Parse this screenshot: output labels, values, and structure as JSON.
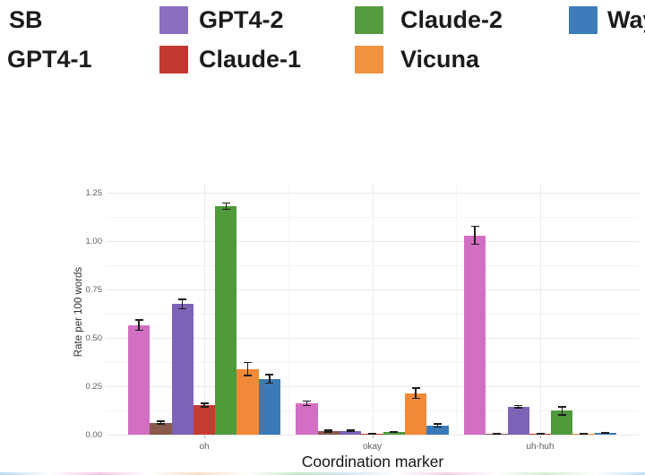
{
  "legend": {
    "items": [
      {
        "id": "sb",
        "label": "SB",
        "color": null,
        "row": 1
      },
      {
        "id": "gpt4-2",
        "label": "GPT4-2",
        "color": "#8a6fc0",
        "row": 1
      },
      {
        "id": "claude-2",
        "label": "Claude-2",
        "color": "#579b40",
        "row": 1
      },
      {
        "id": "wayf",
        "label": "Wayf",
        "color": "#3d7cb8",
        "row": 1,
        "truncated": true
      },
      {
        "id": "gpt4-1",
        "label": "GPT4-1",
        "color": null,
        "row": 2
      },
      {
        "id": "claude-1",
        "label": "Claude-1",
        "color": "#c4392f",
        "row": 2
      },
      {
        "id": "vicuna",
        "label": "Vicuna",
        "color": "#f0923e",
        "row": 2
      }
    ]
  },
  "chart_data": {
    "type": "bar",
    "title": "",
    "xlabel": "Coordination marker",
    "ylabel": "Rate per 100 words",
    "categories": [
      "oh",
      "okay",
      "uh-huh"
    ],
    "yticks": [
      0,
      0.25,
      0.5,
      0.75,
      1.0,
      1.25
    ],
    "ytick_labels": [
      "0.00",
      "0.25",
      "0.50",
      "0.75",
      "1.00",
      "1.25"
    ],
    "ylim": [
      0,
      1.3
    ],
    "grid": true,
    "legend_position": "top",
    "error_bars": true,
    "series": [
      {
        "name": "SB",
        "color": "#d36fc3",
        "values": [
          0.565,
          0.163,
          1.03
        ],
        "errors": [
          0.03,
          0.015,
          0.05
        ]
      },
      {
        "name": "GPT4-1",
        "color": "#8a5a4b",
        "values": [
          0.062,
          0.018,
          0.004
        ],
        "errors": [
          0.01,
          0.008,
          0.002
        ]
      },
      {
        "name": "GPT4-2",
        "color": "#7d63b6",
        "values": [
          0.675,
          0.02,
          0.145
        ],
        "errors": [
          0.028,
          0.006,
          0.01
        ]
      },
      {
        "name": "Claude-1",
        "color": "#c43b33",
        "values": [
          0.153,
          0.004,
          0.004
        ],
        "errors": [
          0.013,
          0.002,
          0.002
        ]
      },
      {
        "name": "Claude-2",
        "color": "#4f9a3b",
        "values": [
          1.18,
          0.014,
          0.123
        ],
        "errors": [
          0.02,
          0.005,
          0.025
        ]
      },
      {
        "name": "Vicuna",
        "color": "#f08a38",
        "values": [
          0.34,
          0.215,
          0.006
        ],
        "errors": [
          0.037,
          0.03,
          0.002
        ]
      },
      {
        "name": "Wayf",
        "color": "#3b7ab7",
        "values": [
          0.288,
          0.048,
          0.009
        ],
        "errors": [
          0.025,
          0.012,
          0.003
        ]
      }
    ]
  },
  "bottom_strip_colors": [
    "#aed3ee",
    "#ffffff",
    "#f2bede",
    "#ffffff",
    "#f5d9c0",
    "#ffffff",
    "#bfe3c0",
    "#cfe2f2",
    "#ffffff",
    "#eec9e2",
    "#ffffff",
    "#cde9cb",
    "#ffffff",
    "#b9d8ef"
  ]
}
